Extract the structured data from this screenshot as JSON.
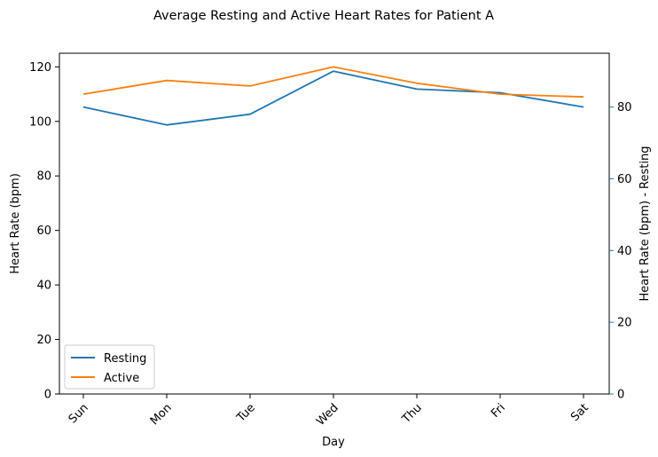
{
  "chart_data": {
    "type": "line",
    "title": "Average Resting and Active Heart Rates for Patient A",
    "xlabel": "Day",
    "categories": [
      "Sun",
      "Mon",
      "Tue",
      "Wed",
      "Thu",
      "Fri",
      "Sat"
    ],
    "left_axis": {
      "label": "Heart Rate (bpm)",
      "ylim": [
        0,
        125
      ],
      "ticks": [
        0,
        20,
        40,
        60,
        80,
        100,
        120
      ],
      "color": "#000000"
    },
    "right_axis": {
      "label": "Heart Rate (bpm) - Resting",
      "ylim": [
        0,
        95
      ],
      "ticks": [
        0,
        20,
        40,
        60,
        80
      ],
      "color": "#1f77b4"
    },
    "series": [
      {
        "name": "Resting",
        "axis": "right",
        "color": "#1f77b4",
        "values": [
          80,
          75,
          78,
          90,
          85,
          84,
          80
        ]
      },
      {
        "name": "Active",
        "axis": "left",
        "color": "#ff7f0e",
        "values": [
          110,
          115,
          113,
          120,
          114,
          110,
          109
        ]
      }
    ],
    "legend": {
      "placement": "lower-left",
      "entries": [
        "Resting",
        "Active"
      ]
    },
    "grid": false
  }
}
